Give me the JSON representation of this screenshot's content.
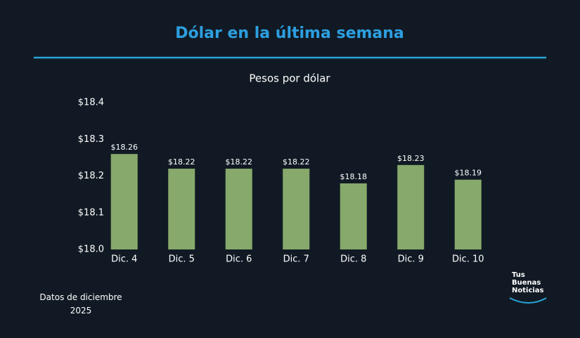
{
  "chart_data": {
    "type": "bar",
    "title": "Dólar en la última semana",
    "subtitle": "Pesos por dólar",
    "categories": [
      "Dic. 4",
      "Dic. 5",
      "Dic. 6",
      "Dic. 7",
      "Dic. 8",
      "Dic. 9",
      "Dic. 10"
    ],
    "values": [
      18.26,
      18.22,
      18.22,
      18.22,
      18.18,
      18.23,
      18.19
    ],
    "value_labels": [
      "$18.26",
      "$18.22",
      "$18.22",
      "$18.22",
      "$18.18",
      "$18.23",
      "$18.19"
    ],
    "color": "#87a96b",
    "ylim": [
      18.0,
      18.4
    ],
    "yticks": [
      {
        "value": 18.0,
        "label": "$18.0"
      },
      {
        "value": 18.1,
        "label": "$18.1"
      },
      {
        "value": 18.2,
        "label": "$18.2"
      },
      {
        "value": 18.3,
        "label": "$18.3"
      },
      {
        "value": 18.4,
        "label": "$18.4"
      }
    ],
    "grid": false
  },
  "footer": {
    "note": "Datos de diciembre 2025",
    "logo": [
      "Tus",
      "Buenas",
      "Noticias"
    ]
  }
}
